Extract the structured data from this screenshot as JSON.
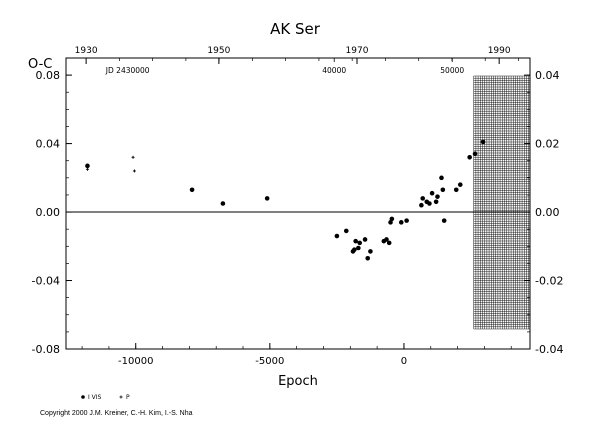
{
  "chart_data": {
    "type": "scatter",
    "title": "AK Ser",
    "ylabel": "O-C",
    "xlabel": "Epoch",
    "xlim": [
      -12600,
      4700
    ],
    "ylim": [
      -0.08,
      0.09
    ],
    "y2lim": [
      -0.04,
      0.045
    ],
    "x_ticks": [
      -10000,
      -5000,
      0
    ],
    "x_tick_labels": [
      "-10000",
      "-5000",
      "0"
    ],
    "y_ticks": [
      -0.08,
      -0.04,
      0.0,
      0.04,
      0.08
    ],
    "y_tick_labels": [
      "-0.08",
      "-0.04",
      "0.00",
      "0.04",
      "0.08"
    ],
    "y2_ticks": [
      -0.04,
      -0.02,
      0.0,
      0.02,
      0.04
    ],
    "y2_tick_labels": [
      "-0.04",
      "-0.02",
      "0.00",
      "0.02",
      "0.04"
    ],
    "top_axis": {
      "year_ticks": [
        {
          "x": -11850,
          "label": "1930"
        },
        {
          "x": -6900,
          "label": "1950"
        },
        {
          "x": -1750,
          "label": "1970"
        },
        {
          "x": 3550,
          "label": "1990"
        }
      ],
      "jd_label": "JD 2430000",
      "jd_label_x": -10300,
      "jd_ticks": [
        {
          "x": -2600,
          "label": "40000"
        },
        {
          "x": 1800,
          "label": "50000"
        }
      ]
    },
    "reference_line_y": 0.0,
    "shaded_region_x": [
      2600,
      4700
    ],
    "series": [
      {
        "name": "",
        "marker": "dot",
        "points": [
          [
            -11800,
            0.027
          ],
          [
            -7900,
            0.013
          ],
          [
            -6750,
            0.005
          ],
          [
            -5100,
            0.008
          ],
          [
            -2500,
            -0.014
          ],
          [
            -2150,
            -0.011
          ],
          [
            -1900,
            -0.023
          ],
          [
            -1850,
            -0.022
          ],
          [
            -1800,
            -0.017
          ],
          [
            -1700,
            -0.021
          ],
          [
            -1650,
            -0.018
          ],
          [
            -1450,
            -0.016
          ],
          [
            -1350,
            -0.027
          ],
          [
            -1250,
            -0.023
          ],
          [
            -750,
            -0.017
          ],
          [
            -650,
            -0.016
          ],
          [
            -550,
            -0.018
          ],
          [
            -500,
            -0.006
          ],
          [
            -450,
            -0.004
          ],
          [
            -100,
            -0.006
          ],
          [
            100,
            -0.005
          ],
          [
            650,
            0.004
          ],
          [
            700,
            0.008
          ],
          [
            850,
            0.006
          ],
          [
            950,
            0.005
          ],
          [
            1050,
            0.011
          ],
          [
            1200,
            0.006
          ],
          [
            1250,
            0.009
          ],
          [
            1400,
            0.02
          ],
          [
            1450,
            0.013
          ],
          [
            1500,
            -0.005
          ],
          [
            1950,
            0.013
          ],
          [
            2100,
            0.016
          ],
          [
            2450,
            0.032
          ],
          [
            2650,
            0.034
          ],
          [
            2950,
            0.041
          ]
        ]
      },
      {
        "name": "",
        "marker": "plus",
        "points": [
          [
            -11800,
            0.025
          ],
          [
            -10100,
            0.032
          ],
          [
            -10050,
            0.024
          ]
        ]
      }
    ],
    "legend": [
      {
        "marker": "dot",
        "label": "I VIS"
      },
      {
        "marker": "plus",
        "label": "P"
      }
    ]
  },
  "copyright": "Copyright 2000 J.M. Kreiner, C.-H. Kim, I.-S. Nha"
}
